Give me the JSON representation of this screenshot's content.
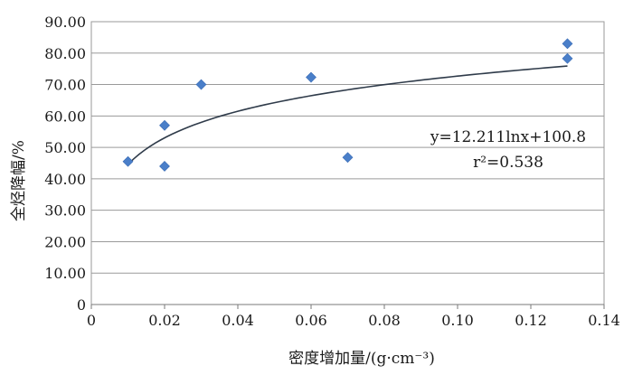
{
  "chart_data": {
    "type": "scatter",
    "title": "",
    "xlabel": "密度增加量/(g·cm⁻³)",
    "ylabel": "全烃降幅/%",
    "xlim": [
      0,
      0.14
    ],
    "ylim": [
      0,
      90
    ],
    "x_ticks": [
      "0",
      "0.02",
      "0.04",
      "0.06",
      "0.08",
      "0.10",
      "0.12",
      "0.14"
    ],
    "y_ticks": [
      "0",
      "10.00",
      "20.00",
      "30.00",
      "40.00",
      "50.00",
      "60.00",
      "70.00",
      "80.00",
      "90.00"
    ],
    "grid": true,
    "marker_color": "#4a7fc9",
    "trend_color": "#2f3b4a",
    "series": [
      {
        "points": [
          {
            "x": 0.01,
            "y": 45.5
          },
          {
            "x": 0.02,
            "y": 57.0
          },
          {
            "x": 0.02,
            "y": 44.0
          },
          {
            "x": 0.03,
            "y": 70.0
          },
          {
            "x": 0.06,
            "y": 72.3
          },
          {
            "x": 0.07,
            "y": 46.8
          },
          {
            "x": 0.13,
            "y": 83.0
          },
          {
            "x": 0.13,
            "y": 78.3
          }
        ]
      }
    ],
    "trendline": {
      "type": "logarithmic",
      "a": 12.211,
      "b": 100.8,
      "x_range": [
        0.01,
        0.13
      ]
    },
    "annotations": [
      {
        "text": "y=12.211lnx+100.8"
      },
      {
        "text": "r²=0.538"
      }
    ]
  }
}
